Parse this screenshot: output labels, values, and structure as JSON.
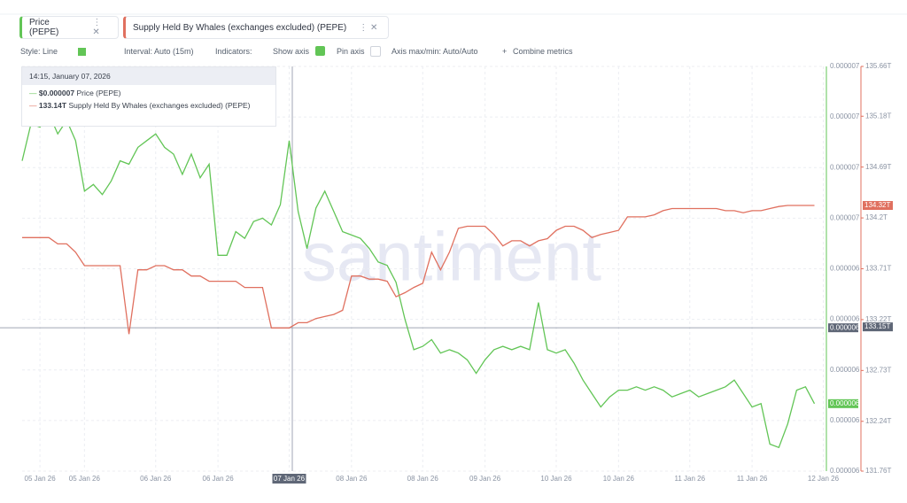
{
  "metrics": [
    {
      "label": "Price (PEPE)"
    },
    {
      "label": "Supply Held By Whales (exchanges excluded) (PEPE)"
    }
  ],
  "toolbar": {
    "style": "Style: Line",
    "interval": "Interval: Auto (15m)",
    "indicators": "Indicators:",
    "show_axis": "Show axis",
    "pin_axis": "Pin axis",
    "axis_minmax": "Axis max/min: Auto/Auto",
    "combine": "Combine metrics"
  },
  "tooltip": {
    "date": "14:15, January 07, 2026",
    "rows": [
      {
        "value": "$0.000007",
        "label": "Price (PEPE)"
      },
      {
        "value": "133.14T",
        "label": "Supply Held By Whales (exchanges excluded) (PEPE)"
      }
    ]
  },
  "watermark": "santiment",
  "chart_data": {
    "type": "line",
    "categories": [
      null,
      null,
      "05 Jan 26",
      null,
      null,
      null,
      null,
      "05 Jan 26",
      null,
      null,
      null,
      null,
      null,
      null,
      null,
      "06 Jan 26",
      null,
      null,
      null,
      null,
      null,
      null,
      "06 Jan 26",
      null,
      null,
      null,
      null,
      null,
      null,
      null,
      "07 Jan 26",
      null,
      null,
      null,
      null,
      null,
      null,
      "08 Jan 26",
      null,
      null,
      null,
      null,
      null,
      null,
      null,
      "08 Jan 26",
      null,
      null,
      null,
      null,
      null,
      null,
      "09 Jan 26",
      null,
      null,
      null,
      null,
      null,
      null,
      null,
      "10 Jan 26",
      null,
      null,
      null,
      null,
      null,
      null,
      "10 Jan 26",
      null,
      null,
      null,
      null,
      null,
      null,
      null,
      "11 Jan 26",
      null,
      null,
      null,
      null,
      null,
      null,
      "11 Jan 26",
      null,
      null,
      null,
      null,
      null,
      null,
      null,
      "12 Jan 26"
    ],
    "series": [
      {
        "name": "Price (PEPE)",
        "color": "#62c556",
        "axis": "y",
        "values": [
          6.72e-06,
          6.83e-06,
          6.82e-06,
          6.86e-06,
          6.8e-06,
          6.84e-06,
          6.78e-06,
          6.63e-06,
          6.65e-06,
          6.62e-06,
          6.66e-06,
          6.72e-06,
          6.71e-06,
          6.76e-06,
          6.78e-06,
          6.8e-06,
          6.76e-06,
          6.74e-06,
          6.68e-06,
          6.74e-06,
          6.67e-06,
          6.71e-06,
          6.44e-06,
          6.44e-06,
          6.51e-06,
          6.49e-06,
          6.54e-06,
          6.55e-06,
          6.53e-06,
          6.59e-06,
          6.78e-06,
          6.57e-06,
          6.46e-06,
          6.58e-06,
          6.63e-06,
          6.57e-06,
          6.51e-06,
          6.5e-06,
          6.49e-06,
          6.46e-06,
          6.42e-06,
          6.41e-06,
          6.36e-06,
          6.25e-06,
          6.16e-06,
          6.17e-06,
          6.19e-06,
          6.15e-06,
          6.16e-06,
          6.15e-06,
          6.13e-06,
          6.09e-06,
          6.13e-06,
          6.16e-06,
          6.17e-06,
          6.16e-06,
          6.17e-06,
          6.16e-06,
          6.3e-06,
          6.16e-06,
          6.15e-06,
          6.16e-06,
          6.12e-06,
          6.07e-06,
          6.03e-06,
          5.99e-06,
          6.02e-06,
          6.04e-06,
          6.04e-06,
          6.05e-06,
          6.04e-06,
          6.05e-06,
          6.04e-06,
          6.02e-06,
          6.03e-06,
          6.04e-06,
          6.02e-06,
          6.03e-06,
          6.04e-06,
          6.05e-06,
          6.07e-06,
          6.03e-06,
          5.99e-06,
          6e-06,
          5.88e-06,
          5.87e-06,
          5.94e-06,
          6.04e-06,
          6.05e-06,
          6e-06,
          null
        ]
      },
      {
        "name": "Supply Held By Whales (exchanges excluded) (PEPE)",
        "color": "#e0705f",
        "axis": "y2",
        "values": [
          134.01,
          134.01,
          134.01,
          134.01,
          133.95,
          133.95,
          133.87,
          133.74,
          133.74,
          133.74,
          133.74,
          133.74,
          133.08,
          133.7,
          133.7,
          133.74,
          133.74,
          133.7,
          133.7,
          133.64,
          133.64,
          133.59,
          133.59,
          133.59,
          133.59,
          133.53,
          133.53,
          133.53,
          133.14,
          133.14,
          133.14,
          133.19,
          133.19,
          133.23,
          133.25,
          133.27,
          133.31,
          133.64,
          133.64,
          133.61,
          133.61,
          133.59,
          133.44,
          133.48,
          133.53,
          133.57,
          133.87,
          133.7,
          133.87,
          134.1,
          134.12,
          134.12,
          134.12,
          134.04,
          133.93,
          133.98,
          133.98,
          133.93,
          133.98,
          134.0,
          134.08,
          134.12,
          134.12,
          134.08,
          134.01,
          134.04,
          134.06,
          134.08,
          134.21,
          134.21,
          134.21,
          134.23,
          134.27,
          134.29,
          134.29,
          134.29,
          134.29,
          134.29,
          134.29,
          134.27,
          134.27,
          134.25,
          134.27,
          134.27,
          134.29,
          134.31,
          134.32,
          134.32,
          134.32,
          134.32,
          null
        ]
      }
    ],
    "ylim": [
      5.8e-06,
      7e-06
    ],
    "yticks": [
      {
        "value": 7e-06,
        "label": "0.000007"
      },
      {
        "value": 6.85e-06,
        "label": "0.000007"
      },
      {
        "value": 6.7e-06,
        "label": "0.000007"
      },
      {
        "value": 6.55e-06,
        "label": "0.000007"
      },
      {
        "value": 6.4e-06,
        "label": "0.000006"
      },
      {
        "value": 6.25e-06,
        "label": "0.000006"
      },
      {
        "value": 6.1e-06,
        "label": "0.000006"
      },
      {
        "value": 5.95e-06,
        "label": "0.000006"
      },
      {
        "value": 5.8e-06,
        "label": "0.000006"
      }
    ],
    "y2lim": [
      131.76,
      135.66
    ],
    "y2ticks": [
      {
        "value": 135.66,
        "label": "135.66T"
      },
      {
        "value": 135.18,
        "label": "135.18T"
      },
      {
        "value": 134.69,
        "label": "134.69T"
      },
      {
        "value": 134.2,
        "label": "134.2T"
      },
      {
        "value": 133.71,
        "label": "133.71T"
      },
      {
        "value": 133.22,
        "label": "133.22T"
      },
      {
        "value": 132.73,
        "label": "132.73T"
      },
      {
        "value": 132.24,
        "label": "132.24T"
      },
      {
        "value": 131.76,
        "label": "131.76T"
      }
    ],
    "grid": true,
    "markers": [
      {
        "axis": "y",
        "value": 6e-06,
        "label": "0.000006",
        "color": "#62c556"
      },
      {
        "axis": "y2",
        "value": 134.32,
        "label": "134.32T",
        "color": "#e0705f"
      }
    ],
    "crosshair": {
      "y": {
        "value": 6.225e-06,
        "label": "0.000006"
      },
      "y2": {
        "value": 133.15,
        "label": "133.15T"
      }
    }
  }
}
